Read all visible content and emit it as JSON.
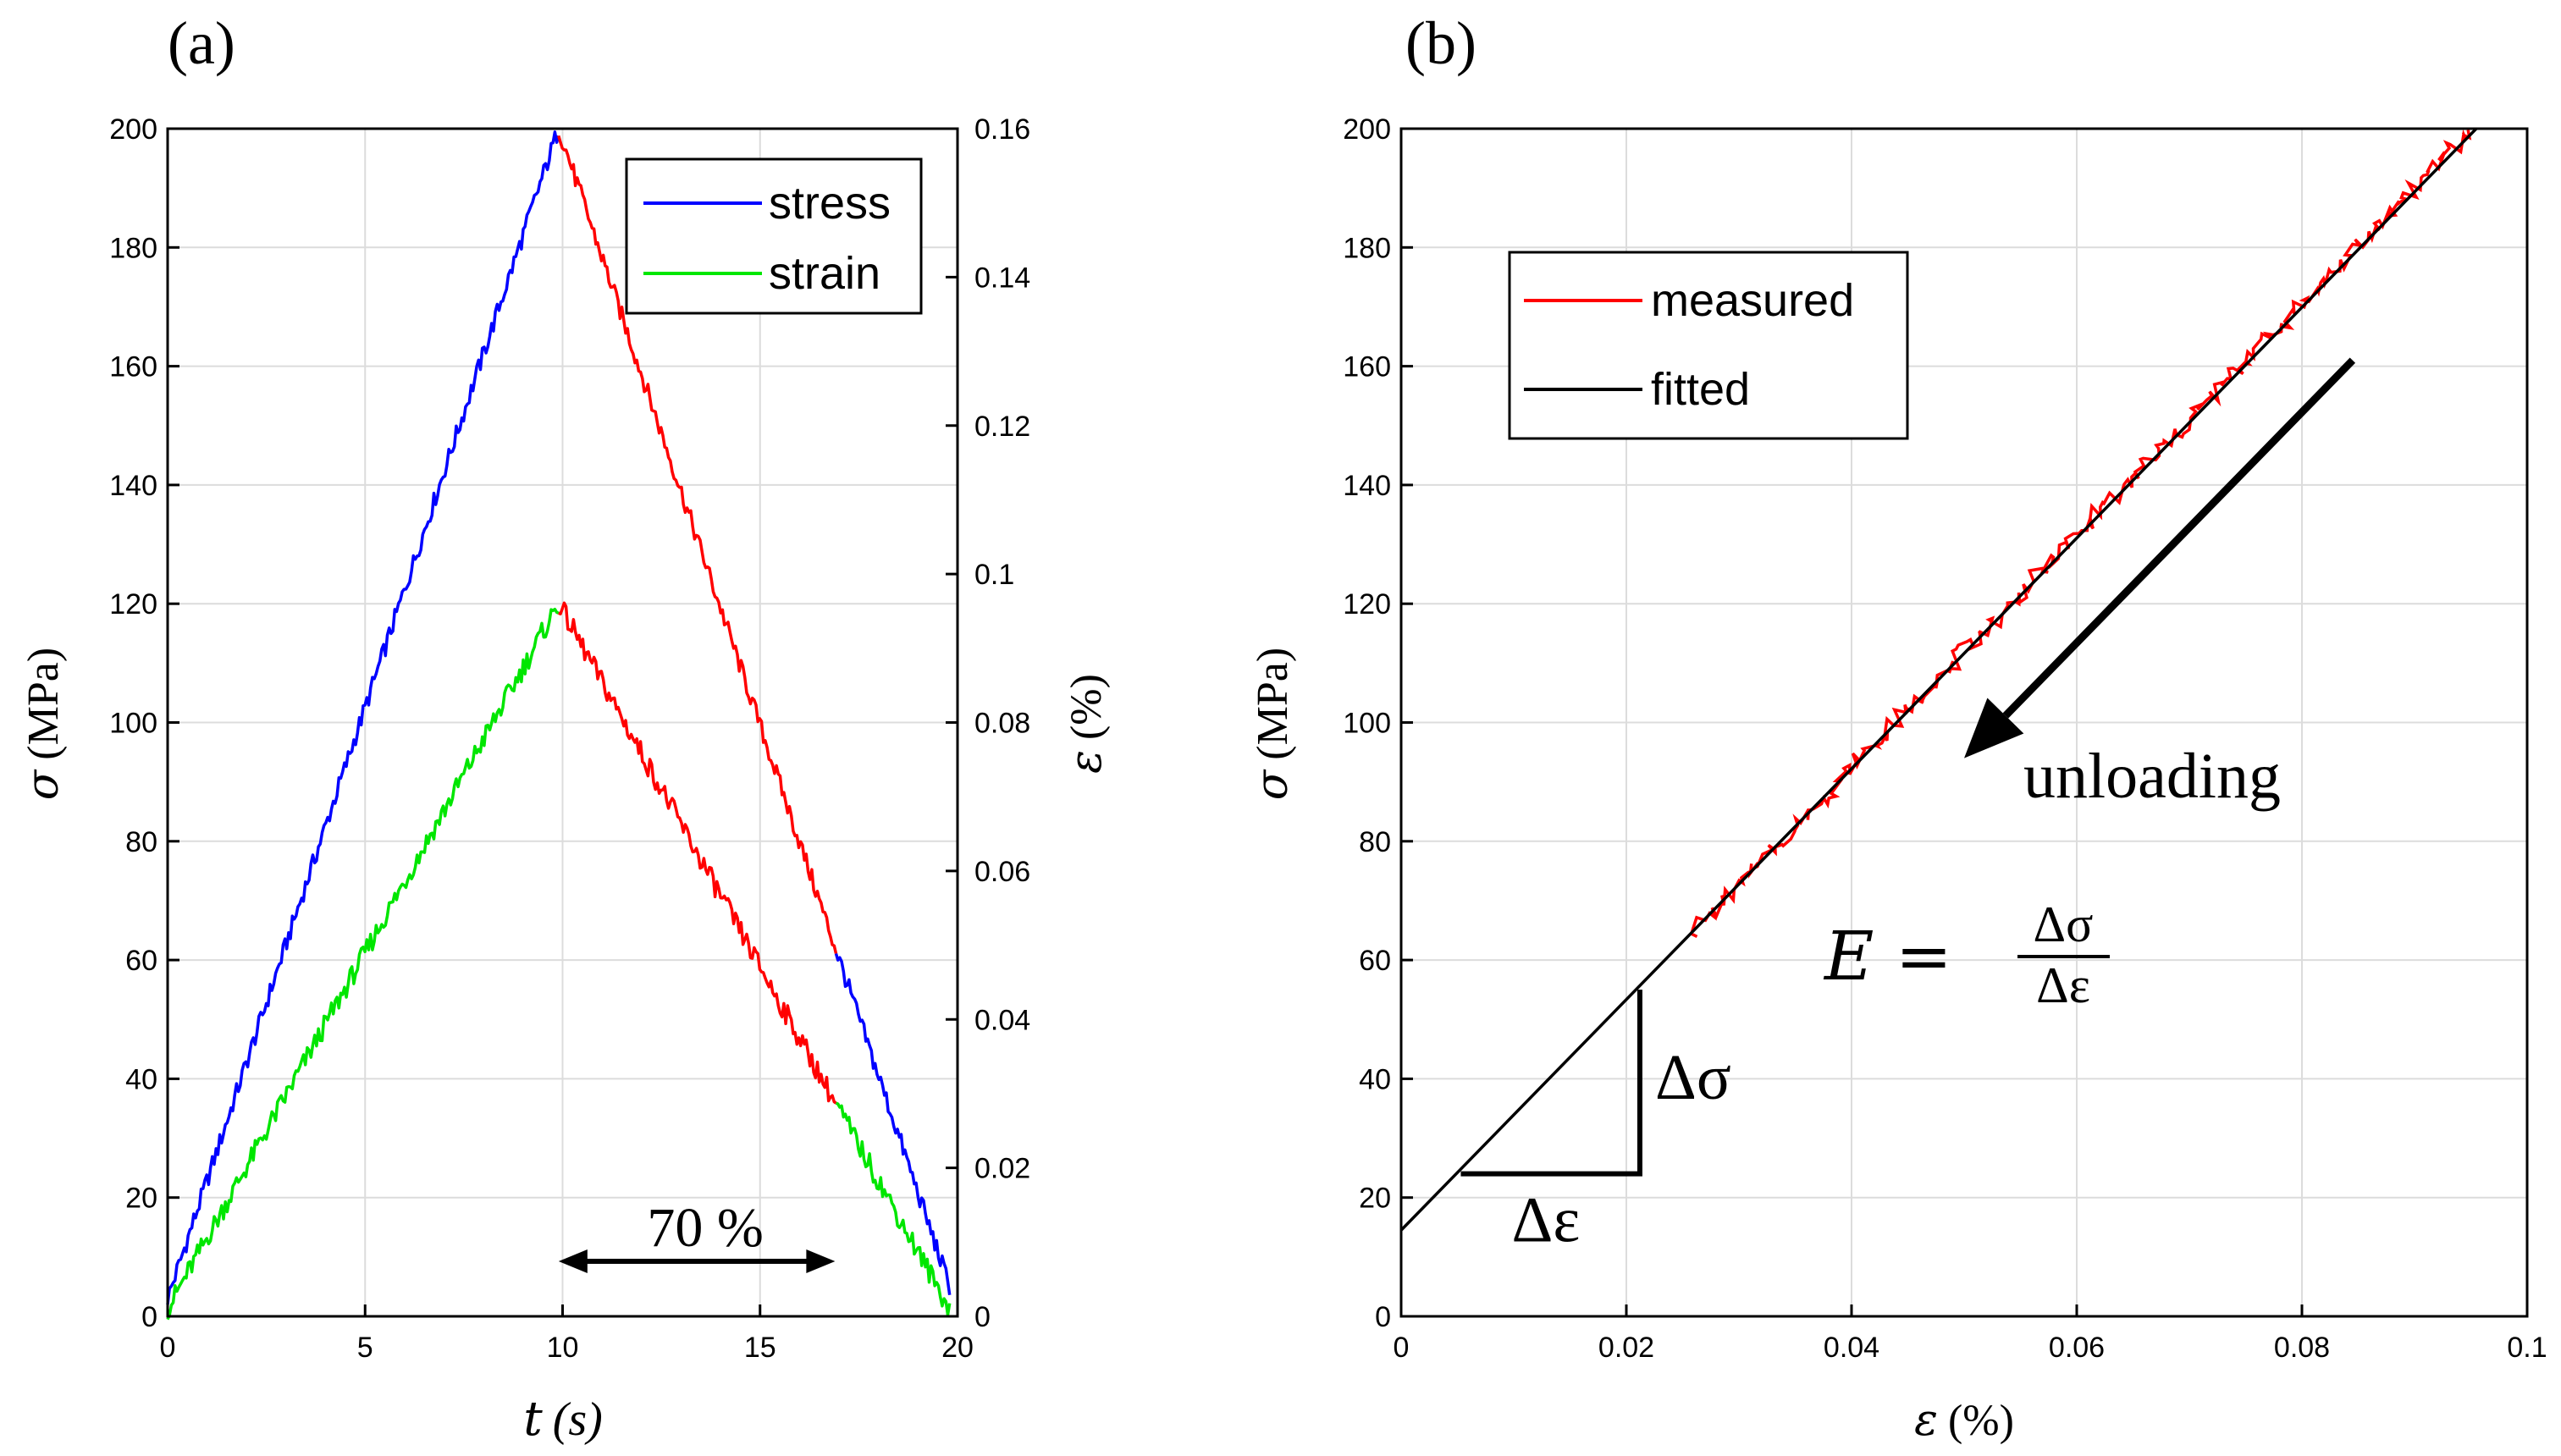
{
  "chart_data": [
    {
      "type": "line",
      "panel_label": "(a)",
      "xlabel_var": "t",
      "xlabel_unit": "(s)",
      "ylabel_var": "σ",
      "ylabel_unit": "(MPa)",
      "y2label_var": "ε",
      "y2label_unit": "(%)",
      "xlim": [
        0,
        20
      ],
      "ylim": [
        0,
        200
      ],
      "y2lim": [
        0,
        0.16
      ],
      "xticks": [
        "0",
        "5",
        "10",
        "15",
        "20"
      ],
      "yticks": [
        "0",
        "20",
        "40",
        "60",
        "80",
        "100",
        "120",
        "140",
        "160",
        "180",
        "200"
      ],
      "y2ticks": [
        "0",
        "0.02",
        "0.04",
        "0.06",
        "0.08",
        "0.1",
        "0.12",
        "0.14",
        "0.16"
      ],
      "grid": true,
      "legend_position": "top-right",
      "legend": [
        {
          "name": "stress",
          "color": "#0000ff"
        },
        {
          "name": "strain",
          "color": "#00e600"
        }
      ],
      "highlight_color": "#ff0000",
      "series": [
        {
          "name": "stress",
          "axis": "left",
          "t": [
            0,
            9.9,
            19.8
          ],
          "values": [
            3,
            200,
            5
          ]
        },
        {
          "name": "strain",
          "axis": "right",
          "t": [
            0,
            9.9,
            19.8
          ],
          "values": [
            0.001,
            0.096,
            0.001
          ]
        }
      ],
      "highlight_range_t": [
        9.9,
        16.9
      ],
      "annotation": {
        "text": "70 %",
        "from_t": 9.9,
        "to_t": 16.9
      }
    },
    {
      "type": "line",
      "panel_label": "(b)",
      "xlabel_var": "ε",
      "xlabel_unit": "(%)",
      "ylabel_var": "σ",
      "ylabel_unit": "(MPa)",
      "xlim": [
        0,
        0.1
      ],
      "ylim": [
        0,
        200
      ],
      "xticks": [
        "0",
        "0.02",
        "0.04",
        "0.06",
        "0.08",
        "0.1"
      ],
      "yticks": [
        "0",
        "20",
        "40",
        "60",
        "80",
        "100",
        "120",
        "140",
        "160",
        "180",
        "200"
      ],
      "grid": true,
      "legend_position": "top-left",
      "legend": [
        {
          "name": "measured",
          "color": "#ff0000"
        },
        {
          "name": "fitted",
          "color": "#000000"
        }
      ],
      "series": [
        {
          "name": "measured",
          "x": [
            0.026,
            0.095
          ],
          "values": [
            65,
            200
          ]
        },
        {
          "name": "fitted",
          "x": [
            0,
            0.096
          ],
          "values": [
            14.5,
            201
          ]
        }
      ],
      "triangle": {
        "x": [
          0.0053,
          0.0212
        ],
        "y": [
          24,
          55
        ],
        "dx_label": "Δε",
        "dy_label": "Δσ"
      },
      "arrow_label": "unloading",
      "arrow": {
        "from": [
          0.0845,
          161
        ],
        "to": [
          0.05,
          94
        ]
      },
      "formula": {
        "lhs": "E =",
        "numerator": "Δσ",
        "denominator": "Δε"
      }
    }
  ]
}
